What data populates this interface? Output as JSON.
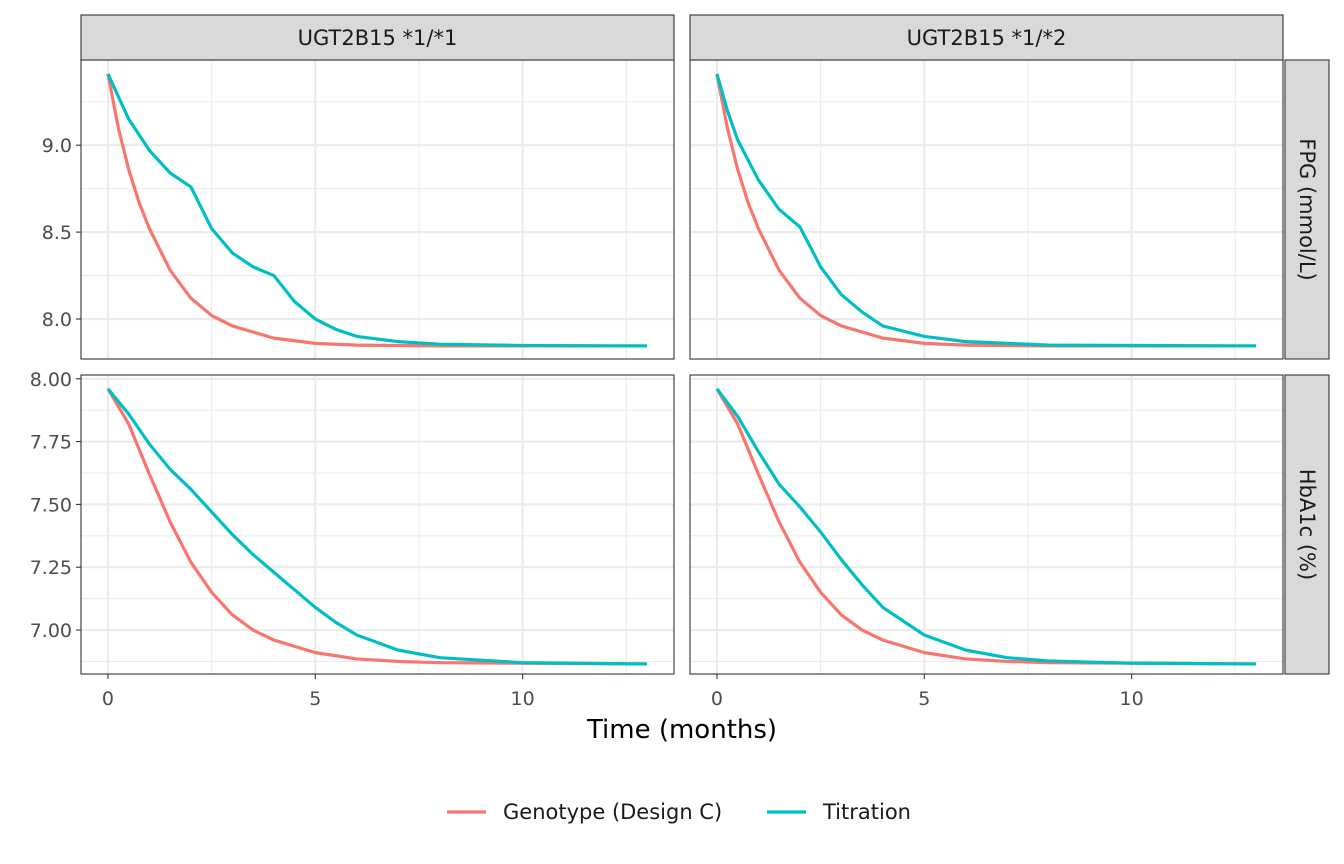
{
  "chart_data": {
    "type": "line",
    "facets": {
      "columns": [
        "UGT2B15 *1/*1",
        "UGT2B15 *1/*2"
      ],
      "rows": [
        "FPG (mmol/L)",
        "HbA1c (%)"
      ]
    },
    "xlabel": "Time (months)",
    "ylabel": "",
    "xlim": [
      -0.65,
      13.65
    ],
    "xticks": [
      0,
      5,
      10
    ],
    "ylims": {
      "FPG (mmol/L)": [
        7.77,
        9.49
      ],
      "HbA1c (%)": [
        6.825,
        8.015
      ]
    },
    "yticks": {
      "FPG (mmol/L)": [
        "8.0",
        "8.5",
        "9.0"
      ],
      "HbA1c (%)": [
        "7.00",
        "7.25",
        "7.50",
        "7.75",
        "8.00"
      ]
    },
    "grid": true,
    "legend_position": "bottom",
    "series": [
      {
        "name": "Genotype (Design C)",
        "color": "#F8766D"
      },
      {
        "name": "Titration",
        "color": "#00BFC4"
      }
    ],
    "panels": [
      {
        "column": "UGT2B15 *1/*1",
        "row": "FPG (mmol/L)",
        "lines": {
          "Genotype (Design C)": [
            [
              0,
              9.41
            ],
            [
              0.25,
              9.1
            ],
            [
              0.5,
              8.86
            ],
            [
              0.75,
              8.67
            ],
            [
              1,
              8.52
            ],
            [
              1.5,
              8.28
            ],
            [
              2,
              8.12
            ],
            [
              2.5,
              8.02
            ],
            [
              3,
              7.96
            ],
            [
              4,
              7.89
            ],
            [
              5,
              7.86
            ],
            [
              6,
              7.85
            ],
            [
              8,
              7.845
            ],
            [
              13,
              7.845
            ]
          ],
          "Titration": [
            [
              0,
              9.41
            ],
            [
              0.5,
              9.15
            ],
            [
              1,
              8.97
            ],
            [
              1.5,
              8.84
            ],
            [
              2,
              8.76
            ],
            [
              2.5,
              8.52
            ],
            [
              3,
              8.38
            ],
            [
              3.5,
              8.3
            ],
            [
              4,
              8.25
            ],
            [
              4.5,
              8.1
            ],
            [
              5,
              8.0
            ],
            [
              5.5,
              7.94
            ],
            [
              6,
              7.9
            ],
            [
              7,
              7.87
            ],
            [
              8,
              7.855
            ],
            [
              10,
              7.848
            ],
            [
              13,
              7.845
            ]
          ]
        }
      },
      {
        "column": "UGT2B15 *1/*2",
        "row": "FPG (mmol/L)",
        "lines": {
          "Genotype (Design C)": [
            [
              0,
              9.41
            ],
            [
              0.25,
              9.1
            ],
            [
              0.5,
              8.86
            ],
            [
              0.75,
              8.67
            ],
            [
              1,
              8.52
            ],
            [
              1.5,
              8.28
            ],
            [
              2,
              8.12
            ],
            [
              2.5,
              8.02
            ],
            [
              3,
              7.96
            ],
            [
              4,
              7.89
            ],
            [
              5,
              7.86
            ],
            [
              6,
              7.85
            ],
            [
              8,
              7.845
            ],
            [
              13,
              7.845
            ]
          ],
          "Titration": [
            [
              0,
              9.41
            ],
            [
              0.25,
              9.2
            ],
            [
              0.5,
              9.03
            ],
            [
              1,
              8.8
            ],
            [
              1.5,
              8.63
            ],
            [
              2,
              8.53
            ],
            [
              2.5,
              8.3
            ],
            [
              3,
              8.14
            ],
            [
              3.5,
              8.04
            ],
            [
              4,
              7.96
            ],
            [
              5,
              7.9
            ],
            [
              6,
              7.87
            ],
            [
              8,
              7.85
            ],
            [
              13,
              7.845
            ]
          ]
        }
      },
      {
        "column": "UGT2B15 *1/*1",
        "row": "HbA1c (%)",
        "lines": {
          "Genotype (Design C)": [
            [
              0,
              7.96
            ],
            [
              0.5,
              7.82
            ],
            [
              1,
              7.62
            ],
            [
              1.5,
              7.43
            ],
            [
              2,
              7.27
            ],
            [
              2.5,
              7.15
            ],
            [
              3,
              7.06
            ],
            [
              3.5,
              7.0
            ],
            [
              4,
              6.96
            ],
            [
              5,
              6.91
            ],
            [
              6,
              6.885
            ],
            [
              7,
              6.875
            ],
            [
              8,
              6.87
            ],
            [
              13,
              6.865
            ]
          ],
          "Titration": [
            [
              0,
              7.96
            ],
            [
              0.5,
              7.86
            ],
            [
              1,
              7.74
            ],
            [
              1.5,
              7.64
            ],
            [
              2,
              7.56
            ],
            [
              2.5,
              7.47
            ],
            [
              3,
              7.38
            ],
            [
              3.5,
              7.3
            ],
            [
              4,
              7.23
            ],
            [
              4.5,
              7.16
            ],
            [
              5,
              7.09
            ],
            [
              5.5,
              7.03
            ],
            [
              6,
              6.98
            ],
            [
              7,
              6.92
            ],
            [
              8,
              6.89
            ],
            [
              10,
              6.87
            ],
            [
              13,
              6.865
            ]
          ]
        }
      },
      {
        "column": "UGT2B15 *1/*2",
        "row": "HbA1c (%)",
        "lines": {
          "Genotype (Design C)": [
            [
              0,
              7.96
            ],
            [
              0.5,
              7.82
            ],
            [
              1,
              7.62
            ],
            [
              1.5,
              7.43
            ],
            [
              2,
              7.27
            ],
            [
              2.5,
              7.15
            ],
            [
              3,
              7.06
            ],
            [
              3.5,
              7.0
            ],
            [
              4,
              6.96
            ],
            [
              5,
              6.91
            ],
            [
              6,
              6.885
            ],
            [
              7,
              6.875
            ],
            [
              8,
              6.87
            ],
            [
              13,
              6.865
            ]
          ],
          "Titration": [
            [
              0,
              7.96
            ],
            [
              0.5,
              7.85
            ],
            [
              1,
              7.71
            ],
            [
              1.5,
              7.58
            ],
            [
              2,
              7.49
            ],
            [
              2.5,
              7.39
            ],
            [
              3,
              7.28
            ],
            [
              3.5,
              7.18
            ],
            [
              4,
              7.09
            ],
            [
              5,
              6.98
            ],
            [
              6,
              6.92
            ],
            [
              7,
              6.89
            ],
            [
              8,
              6.877
            ],
            [
              10,
              6.868
            ],
            [
              13,
              6.865
            ]
          ]
        }
      }
    ]
  }
}
